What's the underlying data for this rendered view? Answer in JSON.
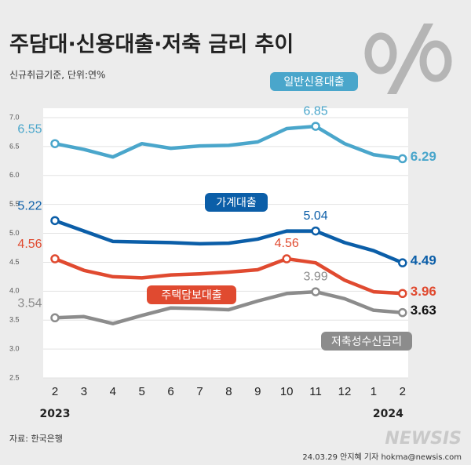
{
  "chart_data": {
    "type": "line",
    "title": "주담대·신용대출·저축 금리 추이",
    "subtitle": "신규취급기준, 단위:연%",
    "categories": [
      "2",
      "3",
      "4",
      "5",
      "6",
      "7",
      "8",
      "9",
      "10",
      "11",
      "12",
      "1",
      "2"
    ],
    "years": [
      "2023",
      "2024"
    ],
    "series": [
      {
        "name": "일반신용대출",
        "color": "#4aa6cb",
        "values": [
          6.55,
          6.45,
          6.32,
          6.55,
          6.47,
          6.51,
          6.52,
          6.58,
          6.81,
          6.85,
          6.55,
          6.36,
          6.29
        ]
      },
      {
        "name": "가계대출",
        "color": "#0b5ea8",
        "values": [
          5.22,
          5.04,
          4.86,
          4.85,
          4.84,
          4.82,
          4.83,
          4.9,
          5.04,
          5.04,
          4.84,
          4.7,
          4.49
        ]
      },
      {
        "name": "주택담보대출",
        "color": "#e04a30",
        "values": [
          4.56,
          4.36,
          4.25,
          4.23,
          4.28,
          4.3,
          4.33,
          4.37,
          4.56,
          4.49,
          4.19,
          3.99,
          3.96
        ]
      },
      {
        "name": "저축성수신금리",
        "color": "#8c8c8c",
        "values": [
          3.54,
          3.56,
          3.44,
          3.58,
          3.71,
          3.7,
          3.68,
          3.83,
          3.96,
          3.99,
          3.87,
          3.67,
          3.63
        ]
      }
    ],
    "ylim": [
      2.5,
      7.0
    ],
    "yticks": [
      {
        "value": 2.5,
        "label": "2.5"
      },
      {
        "value": 3,
        "label": "3.0"
      },
      3.5,
      {
        "value": 4,
        "label": "4.0"
      },
      4.5,
      {
        "value": 5,
        "label": "5.0"
      },
      5.5,
      {
        "value": 6,
        "label": "6.0"
      },
      6.5,
      {
        "value": 7,
        "label": "7.0"
      }
    ],
    "grid": true,
    "source": "자료: 한국은행",
    "credit": "24.03.29 안지혜 기자 hokma@newsis.com",
    "logo": "NEWSIS"
  }
}
